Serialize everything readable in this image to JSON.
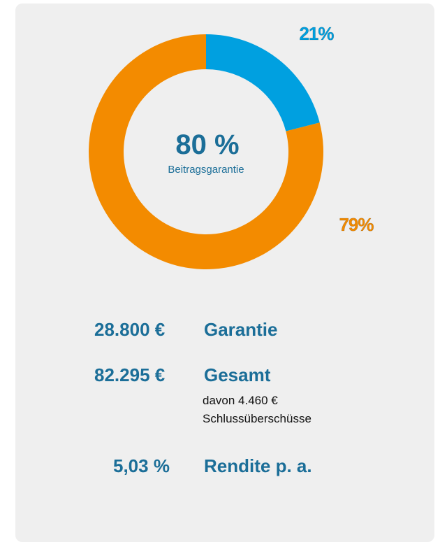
{
  "chart_data": {
    "type": "donut",
    "categories": [
      null,
      null
    ],
    "values": [
      21,
      79
    ],
    "value_labels": [
      "21%",
      "79%"
    ],
    "colors": [
      "#00a0e0",
      "#f38b00"
    ],
    "center_value": "80 %",
    "center_label": "Beitragsgarantie"
  },
  "summary": [
    {
      "amount": "28.800 €",
      "label": "Garantie"
    },
    {
      "amount": "82.295 €",
      "label": "Gesamt",
      "note": [
        "davon 4.460 €",
        "Schlussüberschüsse"
      ]
    },
    {
      "amount": "5,03 %",
      "label": "Rendite p. a."
    }
  ]
}
